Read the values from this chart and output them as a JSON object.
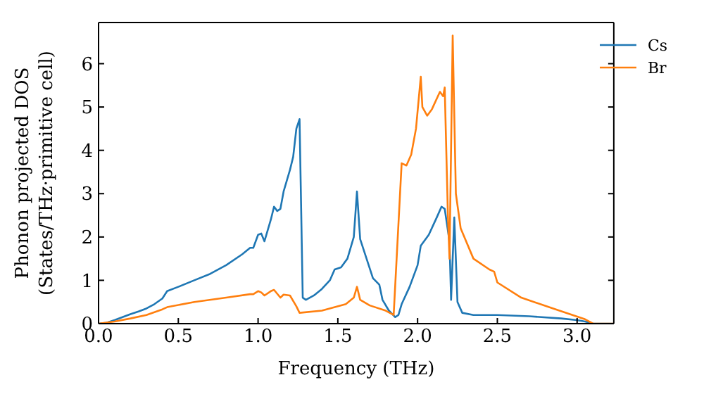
{
  "chart_data": {
    "type": "line",
    "xlabel": "Frequency (THz)",
    "ylabel": "Phonon projected DOS\n(States/THz·primitive cell)",
    "xlim": [
      0,
      3.23
    ],
    "xticks": [
      {
        "value": 0,
        "label": "0.0"
      },
      {
        "value": 0.5,
        "label": "0.5"
      },
      {
        "value": 1,
        "label": "1.0"
      },
      {
        "value": 1.5,
        "label": "1.5"
      },
      {
        "value": 2,
        "label": "2.0"
      },
      {
        "value": 2.5,
        "label": "2.5"
      },
      {
        "value": 3,
        "label": "3.0"
      }
    ],
    "ylim": [
      0,
      6.95
    ],
    "yticks": [
      0,
      1,
      2,
      3,
      4,
      5,
      6
    ],
    "legend": "top right",
    "line_style": "solid",
    "series": [
      {
        "name": "Cs",
        "color": "#1f77b4",
        "x": [
          0,
          0.05,
          0.1,
          0.15,
          0.2,
          0.25,
          0.3,
          0.35,
          0.4,
          0.43,
          0.5,
          0.6,
          0.7,
          0.8,
          0.9,
          0.95,
          0.97,
          1.0,
          1.02,
          1.04,
          1.08,
          1.1,
          1.12,
          1.14,
          1.16,
          1.2,
          1.22,
          1.24,
          1.26,
          1.28,
          1.3,
          1.35,
          1.4,
          1.45,
          1.48,
          1.52,
          1.56,
          1.6,
          1.62,
          1.64,
          1.68,
          1.72,
          1.76,
          1.78,
          1.82,
          1.86,
          1.88,
          1.9,
          1.95,
          2.0,
          2.02,
          2.07,
          2.12,
          2.15,
          2.17,
          2.2,
          2.21,
          2.22,
          2.23,
          2.25,
          2.28,
          2.35,
          2.5,
          2.7,
          2.9,
          3.0,
          3.05,
          3.1,
          3.23
        ],
        "values": [
          0,
          0.02,
          0.08,
          0.15,
          0.22,
          0.28,
          0.35,
          0.45,
          0.58,
          0.75,
          0.85,
          1.0,
          1.15,
          1.35,
          1.6,
          1.75,
          1.75,
          2.05,
          2.08,
          1.9,
          2.4,
          2.7,
          2.6,
          2.65,
          3.05,
          3.55,
          3.85,
          4.5,
          4.72,
          0.6,
          0.55,
          0.65,
          0.8,
          1.0,
          1.25,
          1.3,
          1.5,
          2.0,
          3.05,
          1.95,
          1.5,
          1.05,
          0.9,
          0.55,
          0.3,
          0.15,
          0.2,
          0.45,
          0.85,
          1.35,
          1.8,
          2.05,
          2.45,
          2.7,
          2.65,
          1.9,
          0.55,
          1.5,
          2.45,
          0.5,
          0.25,
          0.2,
          0.2,
          0.17,
          0.12,
          0.08,
          0.05,
          0,
          0
        ]
      },
      {
        "name": "Br",
        "color": "#ff7f0e",
        "x": [
          0,
          0.1,
          0.2,
          0.3,
          0.4,
          0.43,
          0.6,
          0.8,
          0.95,
          0.97,
          1.0,
          1.02,
          1.04,
          1.08,
          1.1,
          1.14,
          1.16,
          1.2,
          1.24,
          1.26,
          1.4,
          1.55,
          1.6,
          1.62,
          1.64,
          1.7,
          1.8,
          1.85,
          1.9,
          1.93,
          1.96,
          1.99,
          2.02,
          2.03,
          2.06,
          2.09,
          2.14,
          2.16,
          2.17,
          2.19,
          2.2,
          2.22,
          2.24,
          2.27,
          2.35,
          2.45,
          2.48,
          2.5,
          2.65,
          2.85,
          3.05,
          3.1,
          3.23
        ],
        "values": [
          0,
          0.05,
          0.12,
          0.2,
          0.33,
          0.38,
          0.5,
          0.6,
          0.68,
          0.68,
          0.75,
          0.72,
          0.65,
          0.75,
          0.78,
          0.6,
          0.67,
          0.65,
          0.4,
          0.25,
          0.3,
          0.45,
          0.6,
          0.85,
          0.55,
          0.42,
          0.3,
          0.2,
          3.7,
          3.65,
          3.9,
          4.5,
          5.7,
          5.0,
          4.8,
          4.95,
          5.35,
          5.25,
          5.45,
          2.5,
          1.5,
          6.65,
          3.0,
          2.2,
          1.5,
          1.25,
          1.2,
          0.95,
          0.6,
          0.35,
          0.1,
          0,
          0
        ]
      }
    ]
  }
}
